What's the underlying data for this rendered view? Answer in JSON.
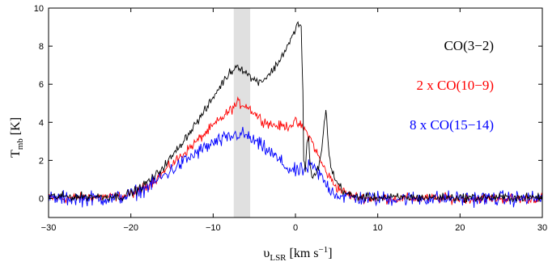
{
  "chart_data": {
    "type": "line",
    "title": "",
    "xlabel": "υLSR [km s−1]",
    "xlabel_parts": {
      "symbol": "υ",
      "sub": "LSR",
      "unit_pre": " [km s",
      "unit_sup": "−1",
      "unit_post": "]"
    },
    "ylabel": "Tmb [K]",
    "ylabel_parts": {
      "symbol": "T",
      "sub": "mb",
      "unit": " [K]"
    },
    "xlim": [
      -30,
      30
    ],
    "ylim": [
      -1,
      10
    ],
    "xticks": [
      -30,
      -20,
      -10,
      0,
      10,
      20,
      30
    ],
    "xtick_labels": [
      "−30",
      "−20",
      "−10",
      "0",
      "10",
      "20",
      "30"
    ],
    "yticks": [
      0,
      2,
      4,
      6,
      8,
      10
    ],
    "ytick_labels": [
      "0",
      "2",
      "4",
      "6",
      "8",
      "10"
    ],
    "grid": false,
    "legend_position": "right",
    "shaded_band": {
      "x": [
        -7.5,
        -5.5
      ],
      "color": "#e0e0e0"
    },
    "series": [
      {
        "name": "CO(3−2)",
        "color": "#000000",
        "noise": 0.17,
        "x": [
          -30,
          -21,
          -19,
          -17,
          -15,
          -13,
          -11,
          -9,
          -8,
          -7,
          -6,
          -5,
          -4,
          -3,
          -2,
          -1,
          0,
          0.4,
          0.7,
          0.9,
          1.0,
          1.2,
          1.4,
          1.6,
          1.8,
          2.0,
          2.3,
          2.6,
          2.9,
          3.2,
          3.5,
          3.7,
          3.9,
          4.1,
          4.4,
          4.8,
          5.5,
          6.0,
          7.0,
          9.0,
          30
        ],
        "y": [
          0.1,
          0.1,
          0.5,
          1.2,
          2.2,
          3.4,
          4.6,
          6.0,
          6.6,
          7.0,
          6.6,
          6.2,
          6.2,
          6.6,
          7.2,
          8.0,
          8.8,
          9.3,
          9.0,
          5.5,
          2.0,
          1.5,
          3.0,
          3.2,
          1.6,
          1.0,
          1.2,
          1.5,
          1.8,
          2.5,
          4.0,
          4.6,
          3.5,
          2.3,
          1.5,
          1.0,
          0.6,
          0.3,
          0.1,
          0.05,
          0.05
        ]
      },
      {
        "name": "2 x CO(10−9)",
        "color": "#ff0000",
        "noise": 0.2,
        "x": [
          -30,
          -21,
          -19,
          -17,
          -15,
          -13,
          -11,
          -9,
          -8,
          -7,
          -6,
          -5,
          -4,
          -3,
          -2,
          -1,
          0,
          1,
          2,
          3,
          4,
          5,
          6,
          7,
          9,
          30
        ],
        "y": [
          0.0,
          0.1,
          0.4,
          1.0,
          1.8,
          2.6,
          3.4,
          4.2,
          4.6,
          5.0,
          4.9,
          4.5,
          4.1,
          3.9,
          3.8,
          3.8,
          4.0,
          3.7,
          3.0,
          2.0,
          1.2,
          0.6,
          0.3,
          0.1,
          0.0,
          0.0
        ]
      },
      {
        "name": "8 x CO(15−14)",
        "color": "#0000ff",
        "noise": 0.3,
        "x": [
          -30,
          -22,
          -20,
          -18,
          -16,
          -14,
          -12,
          -10,
          -8,
          -7,
          -6,
          -5,
          -4,
          -3,
          -2,
          -1,
          0,
          1,
          2,
          3,
          4,
          5,
          6,
          8,
          30
        ],
        "y": [
          0.0,
          0.0,
          0.2,
          0.6,
          1.2,
          1.8,
          2.4,
          2.9,
          3.2,
          3.4,
          3.3,
          3.0,
          2.7,
          2.4,
          2.0,
          1.6,
          1.4,
          1.5,
          1.7,
          1.2,
          0.6,
          0.2,
          0.1,
          0.0,
          0.0
        ]
      }
    ]
  }
}
